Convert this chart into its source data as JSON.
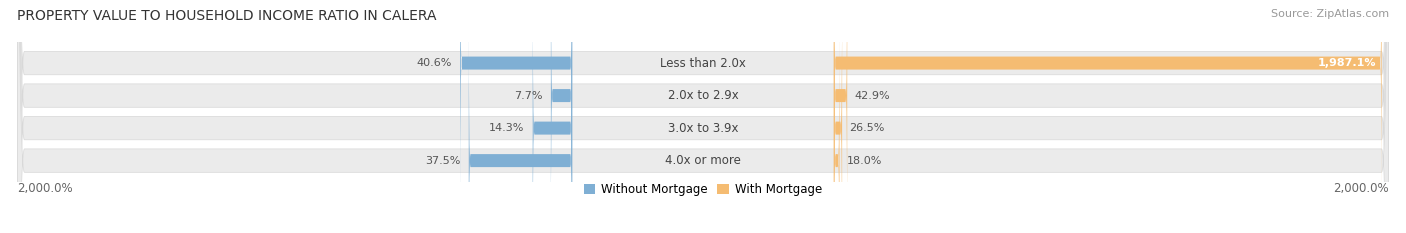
{
  "title": "PROPERTY VALUE TO HOUSEHOLD INCOME RATIO IN CALERA",
  "source": "Source: ZipAtlas.com",
  "categories": [
    "Less than 2.0x",
    "2.0x to 2.9x",
    "3.0x to 3.9x",
    "4.0x or more"
  ],
  "without_mortgage": [
    40.6,
    7.7,
    14.3,
    37.5
  ],
  "with_mortgage": [
    1987.1,
    42.9,
    26.5,
    18.0
  ],
  "without_mortgage_color": "#7fafd4",
  "with_mortgage_color": "#f5bc72",
  "row_bg_color": "#ebebeb",
  "row_border_color": "#d8d8d8",
  "xlim_left": -2000,
  "xlim_right": 2000,
  "xlabel_left": "2,000.0%",
  "xlabel_right": "2,000.0%",
  "legend_labels": [
    "Without Mortgage",
    "With Mortgage"
  ],
  "title_fontsize": 10,
  "source_fontsize": 8,
  "label_fontsize": 8.5,
  "value_fontsize": 8,
  "axis_fontsize": 8.5
}
